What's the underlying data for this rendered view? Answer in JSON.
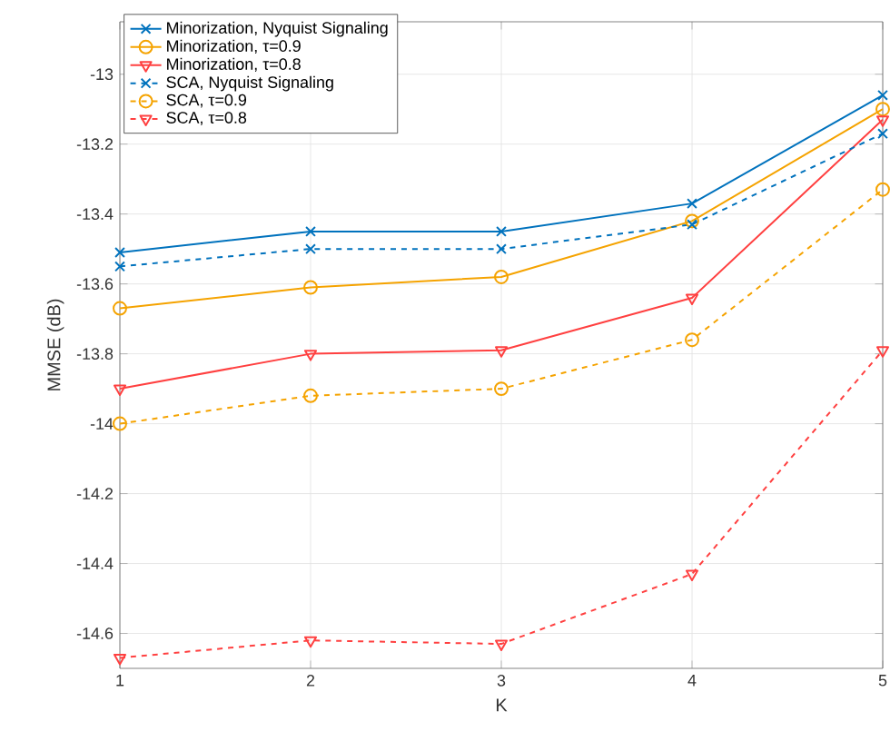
{
  "chart_data": {
    "type": "line",
    "xlabel": "K",
    "ylabel": "MMSE (dB)",
    "x": [
      1,
      2,
      3,
      4,
      5
    ],
    "series": [
      {
        "name": "Minorization, Nyquist Signaling",
        "color": "#0072bd",
        "marker": "cross",
        "line_style": "solid",
        "values": [
          -13.51,
          -13.45,
          -13.45,
          -13.37,
          -13.06
        ]
      },
      {
        "name": "Minorization, τ=0.9",
        "color": "#f5a300",
        "marker": "circle",
        "line_style": "solid",
        "values": [
          -13.67,
          -13.61,
          -13.58,
          -13.42,
          -13.1
        ]
      },
      {
        "name": "Minorization, τ=0.8",
        "color": "#ff4040",
        "marker": "triangle",
        "line_style": "solid",
        "values": [
          -13.9,
          -13.8,
          -13.79,
          -13.64,
          -13.13
        ]
      },
      {
        "name": "SCA, Nyquist Signaling",
        "color": "#0072bd",
        "marker": "cross",
        "line_style": "dashed",
        "values": [
          -13.55,
          -13.5,
          -13.5,
          -13.43,
          -13.17
        ]
      },
      {
        "name": "SCA, τ=0.9",
        "color": "#f5a300",
        "marker": "circle",
        "line_style": "dashed",
        "values": [
          -14.0,
          -13.92,
          -13.9,
          -13.76,
          -13.33
        ]
      },
      {
        "name": "SCA, τ=0.8",
        "color": "#ff4040",
        "marker": "triangle",
        "line_style": "dashed",
        "values": [
          -14.67,
          -14.62,
          -14.63,
          -14.43,
          -13.79
        ]
      }
    ],
    "xlim": [
      1,
      5
    ],
    "ylim": [
      -14.7,
      -12.85
    ],
    "xticks": [
      1,
      2,
      3,
      4,
      5
    ],
    "yticks": [
      -14.6,
      -14.4,
      -14.2,
      -14,
      -13.8,
      -13.6,
      -13.4,
      -13.2,
      -13
    ],
    "grid": true,
    "legend": "top left"
  }
}
